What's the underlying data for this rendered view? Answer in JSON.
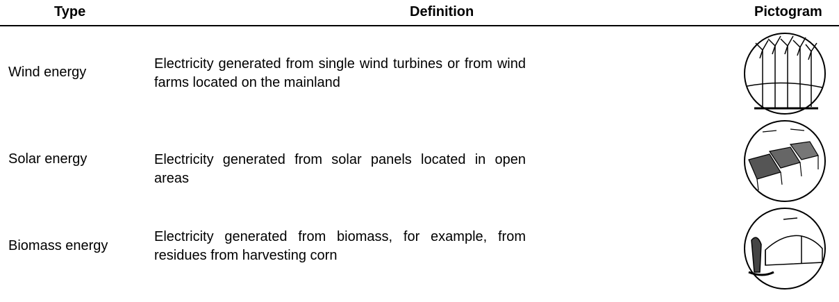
{
  "table": {
    "header": [
      "Type",
      "Definition",
      "Pictogram"
    ],
    "rows": [
      {
        "type": "Wind energy",
        "definition": "Electricity generated from single wind turbines or from wind farms located on the mainland"
      },
      {
        "type": "Solar energy",
        "definition": "Electricity generated from solar panels located in open areas"
      },
      {
        "type": "Biomass energy",
        "definition": "Electricity generated from biomass, for example, from residues from harvesting corn"
      }
    ]
  }
}
